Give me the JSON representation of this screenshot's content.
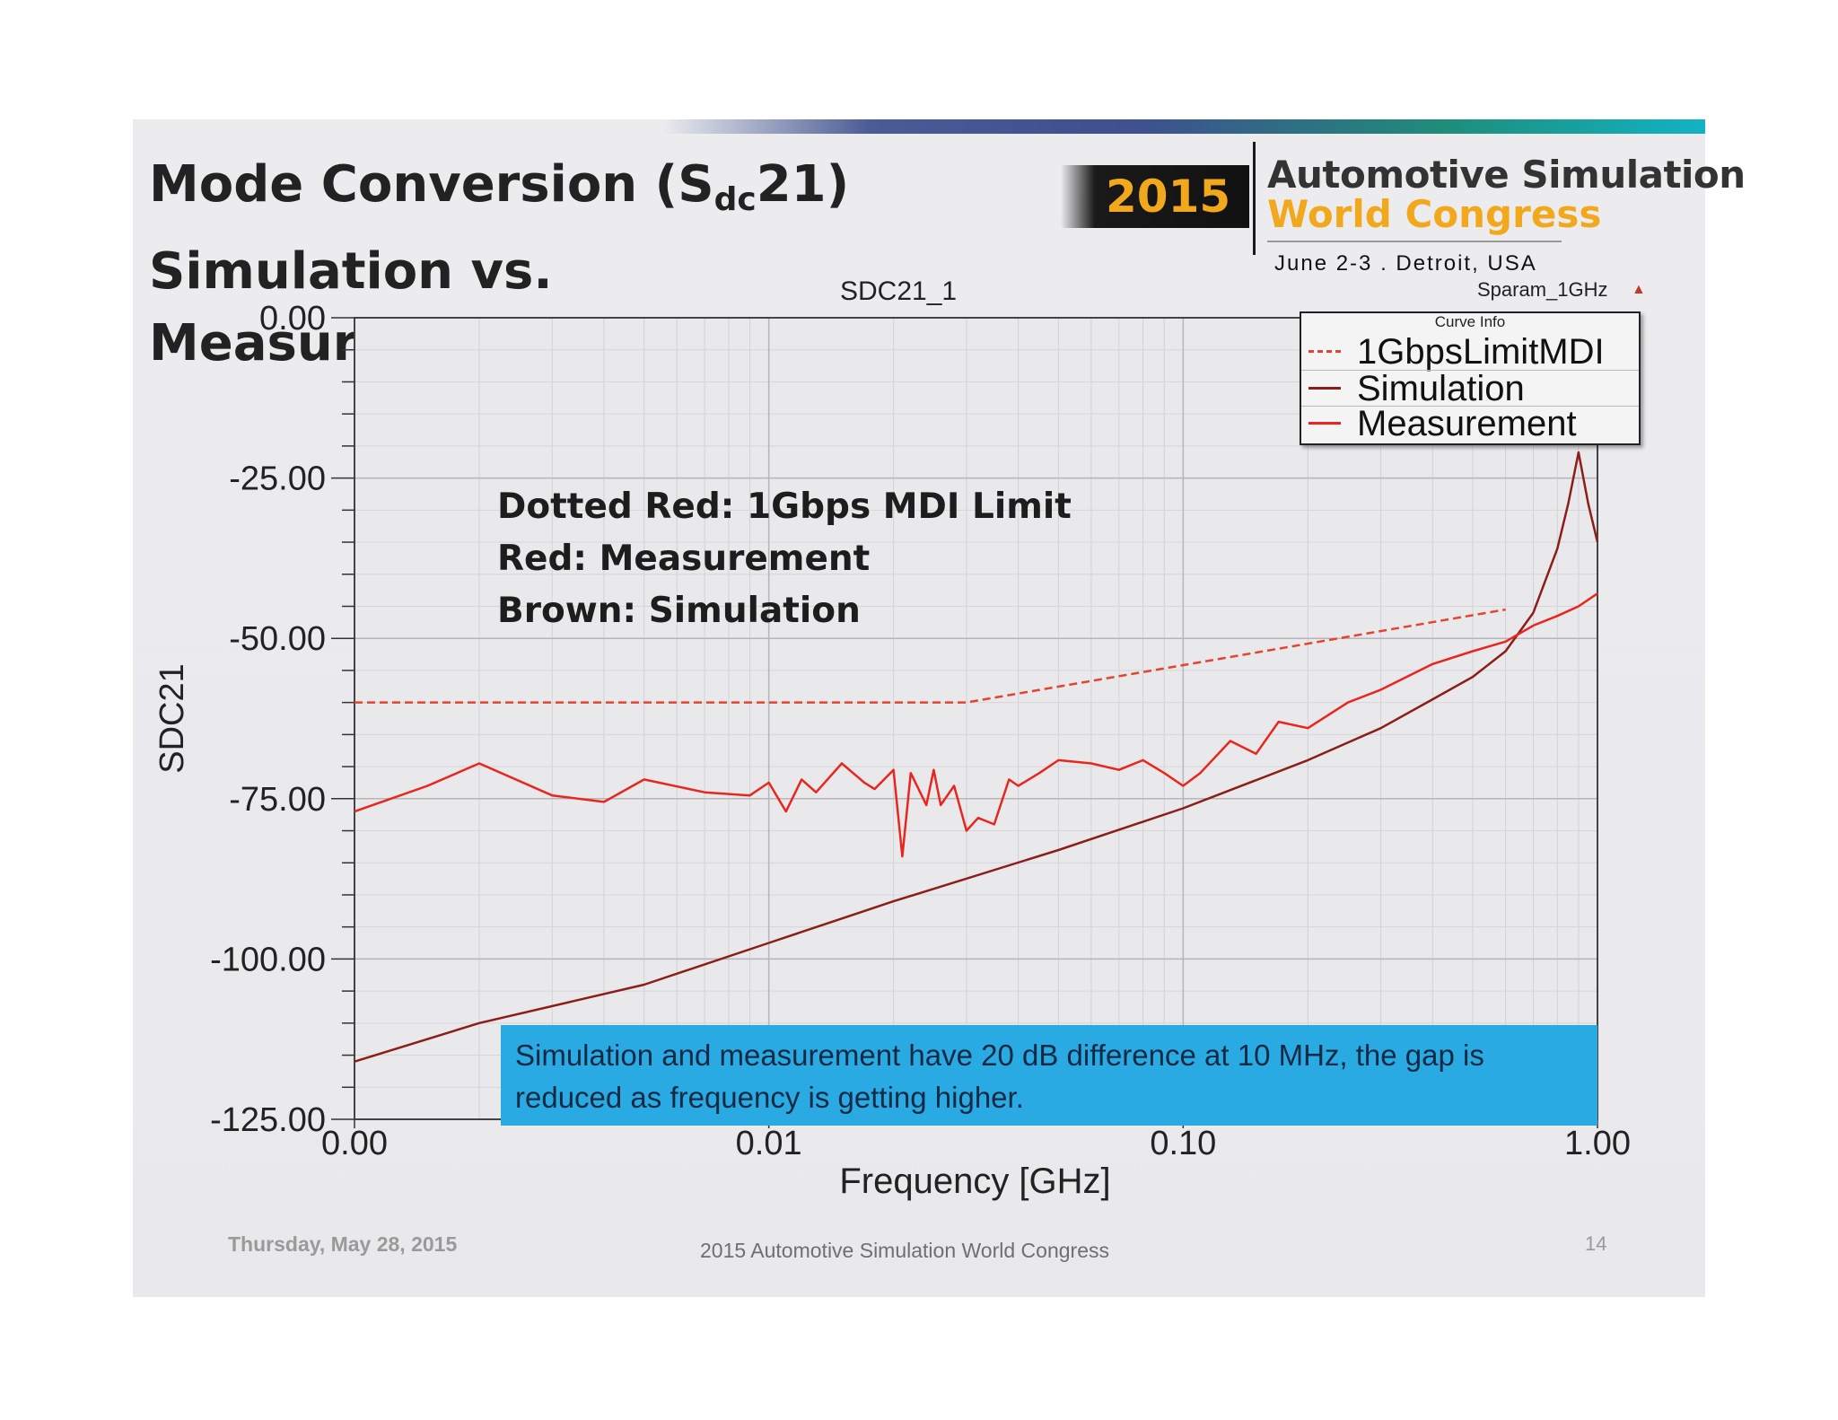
{
  "slide": {
    "title_main": "Mode Conversion (S",
    "title_sub": "dc",
    "title_suffix": "21)",
    "title_line2": "Simulation vs. Measurement"
  },
  "logo": {
    "year": "2015",
    "line1": "Automotive Simulation",
    "line2": "World Congress",
    "date_location": "June 2-3  .  Detroit, USA"
  },
  "sparam_label": "Sparam_1GHz",
  "colors": {
    "limit": "#e2452f",
    "simulation": "#8c1d18",
    "measurement": "#e8261e",
    "callout_bg": "#2aaae2",
    "logo_orange": "#f2a81d"
  },
  "annotations": [
    "Dotted Red: 1Gbps MDI Limit",
    "Red: Measurement",
    "Brown: Simulation"
  ],
  "callout": "Simulation and measurement have 20 dB difference at 10 MHz, the gap is reduced as frequency is getting higher.",
  "footer": {
    "date": "Thursday, May 28, 2015",
    "center": "2015 Automotive Simulation World Congress",
    "page": "14"
  },
  "chart_data": {
    "type": "line",
    "title": "SDC21_1",
    "xlabel": "Frequency [GHz]",
    "ylabel": "SDC21",
    "x_scale": "log",
    "xlim": [
      0.001,
      1.0
    ],
    "ylim": [
      -125,
      0
    ],
    "x_ticks": [
      0.001,
      0.01,
      0.1,
      1.0
    ],
    "x_tick_labels": [
      "0.00",
      "0.01",
      "0.10",
      "1.00"
    ],
    "y_ticks": [
      0,
      -25,
      -50,
      -75,
      -100,
      -125
    ],
    "y_tick_labels": [
      "0.00",
      "-25.00",
      "-50.00",
      "-75.00",
      "-100.00",
      "-125.00"
    ],
    "grid": true,
    "legend_title": "Curve Info",
    "legend_position": "top-right",
    "series": [
      {
        "name": "1GbpsLimitMDI",
        "style": "dashed",
        "x": [
          0.001,
          0.03,
          0.6
        ],
        "y": [
          -60,
          -60,
          -45.5
        ]
      },
      {
        "name": "Simulation",
        "style": "solid",
        "x": [
          0.001,
          0.002,
          0.005,
          0.01,
          0.02,
          0.05,
          0.1,
          0.2,
          0.3,
          0.4,
          0.5,
          0.6,
          0.7,
          0.8,
          0.85,
          0.9,
          0.95,
          1.0
        ],
        "y": [
          -116,
          -110,
          -104,
          -97.5,
          -91,
          -83,
          -76.5,
          -69,
          -64,
          -59.5,
          -56,
          -52,
          -46,
          -36,
          -29,
          -21,
          -29,
          -35
        ]
      },
      {
        "name": "Measurement",
        "style": "solid",
        "x": [
          0.001,
          0.0015,
          0.002,
          0.003,
          0.004,
          0.005,
          0.007,
          0.009,
          0.01,
          0.011,
          0.012,
          0.013,
          0.015,
          0.017,
          0.018,
          0.02,
          0.021,
          0.022,
          0.024,
          0.025,
          0.026,
          0.028,
          0.03,
          0.032,
          0.035,
          0.038,
          0.04,
          0.045,
          0.05,
          0.06,
          0.07,
          0.08,
          0.09,
          0.1,
          0.11,
          0.13,
          0.15,
          0.17,
          0.2,
          0.25,
          0.3,
          0.4,
          0.5,
          0.6,
          0.7,
          0.8,
          0.9,
          1.0
        ],
        "y": [
          -77,
          -73,
          -69.5,
          -74.5,
          -75.5,
          -72,
          -74,
          -74.5,
          -72.5,
          -77,
          -72,
          -74,
          -69.5,
          -72.5,
          -73.5,
          -70.5,
          -84,
          -71,
          -76,
          -70.5,
          -76,
          -73,
          -80,
          -78,
          -79,
          -72,
          -73,
          -71,
          -69,
          -69.5,
          -70.5,
          -69,
          -71,
          -73,
          -71,
          -66,
          -68,
          -63,
          -64,
          -60,
          -58,
          -54,
          -52,
          -50.5,
          -48,
          -46.5,
          -45,
          -43
        ]
      }
    ]
  }
}
